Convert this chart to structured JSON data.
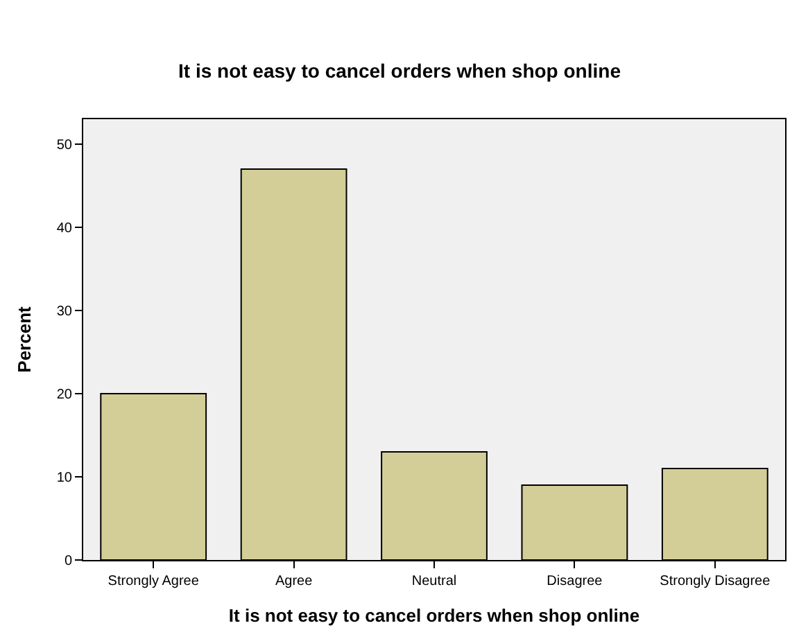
{
  "chart_data": {
    "type": "bar",
    "title": "It is not easy to cancel orders when shop online",
    "xlabel": "It is not easy to cancel orders when shop online",
    "ylabel": "Percent",
    "categories": [
      "Strongly Agree",
      "Agree",
      "Neutral",
      "Disagree",
      "Strongly Disagree"
    ],
    "values": [
      20,
      47,
      13,
      9,
      11
    ],
    "color": "#d3ce97",
    "ylim": [
      0,
      53
    ],
    "yticks": [
      0,
      10,
      20,
      30,
      40,
      50
    ],
    "grid": false
  }
}
